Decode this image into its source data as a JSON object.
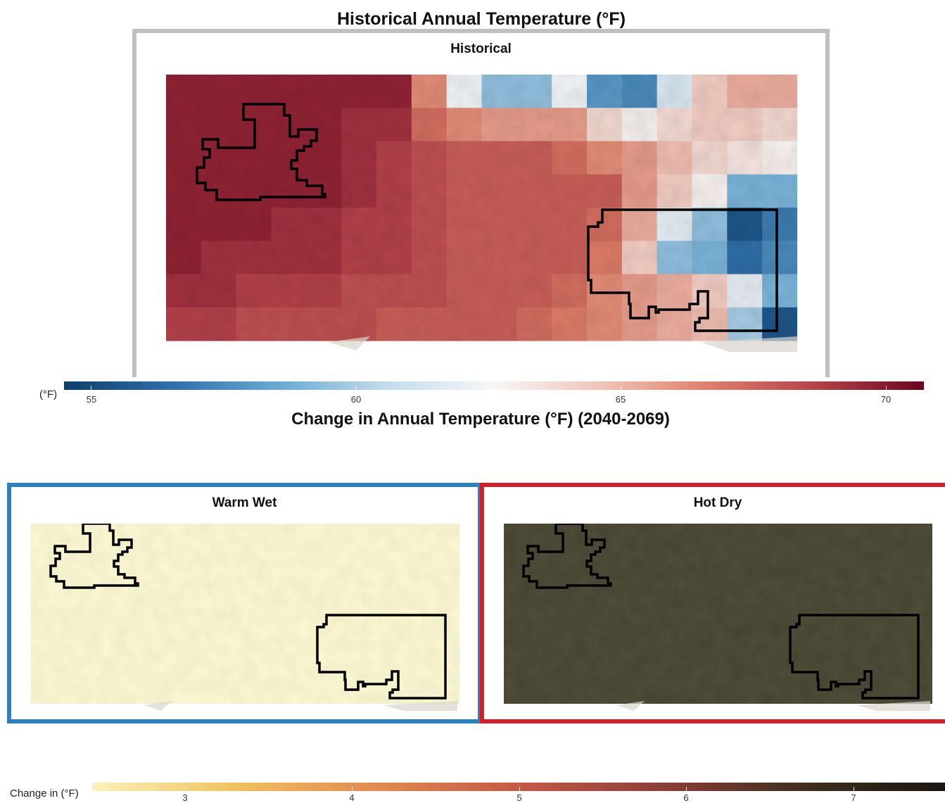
{
  "historical": {
    "title": "Historical Annual Temperature (°F)",
    "panel_title": "Historical",
    "frame_color": "#c0c0c0",
    "legend": {
      "unit_label": "(°F)",
      "ticks": [
        "55",
        "60",
        "65",
        "70"
      ],
      "colors": [
        "#0e3e6b",
        "#2f6fa8",
        "#6aaad4",
        "#c3dcec",
        "#f7f7f7",
        "#f1c4b8",
        "#de7f69",
        "#b5424a",
        "#6b0520"
      ]
    },
    "map_grid": [
      [
        70,
        70,
        70,
        70,
        70,
        70,
        70,
        66.5,
        62.5,
        59.5,
        59.5,
        62.5,
        58,
        57.5,
        61.5,
        64.5,
        65.5,
        65.5
      ],
      [
        70,
        70,
        70,
        70,
        70,
        69.5,
        69.5,
        67.5,
        66.5,
        66,
        66,
        66,
        64,
        63,
        64,
        64.5,
        64.5,
        64
      ],
      [
        70,
        70,
        70,
        70,
        70,
        69.5,
        69,
        68.5,
        68,
        68,
        68,
        67.5,
        66.5,
        66,
        65,
        64,
        63.5,
        63
      ],
      [
        70,
        70,
        70,
        70,
        70,
        69.5,
        69,
        68.5,
        68,
        68,
        68,
        68,
        68,
        66,
        64.5,
        63,
        59,
        59
      ],
      [
        70,
        70,
        70,
        69.5,
        69.5,
        69,
        69,
        68.5,
        68,
        68,
        68,
        68,
        67.5,
        65.5,
        62,
        59.5,
        55.5,
        57
      ],
      [
        70,
        69.5,
        69.5,
        69.5,
        69.5,
        69,
        69,
        68.5,
        68,
        68,
        68,
        68,
        67,
        64.5,
        59.5,
        59,
        56.5,
        57.5
      ],
      [
        69.5,
        69.5,
        69,
        69,
        69,
        68.5,
        68.5,
        68.5,
        68,
        68,
        68,
        67.5,
        66.5,
        66,
        65.5,
        64.5,
        62,
        59
      ],
      [
        69,
        69,
        68.5,
        68.5,
        68.5,
        68.5,
        68,
        68,
        68,
        68,
        67.5,
        67,
        66.5,
        66,
        65.5,
        65,
        60,
        55.5
      ]
    ]
  },
  "change": {
    "title": "Change in Annual Temperature (°F) (2040-2069)",
    "panels": [
      {
        "title": "Warm Wet",
        "frame_color": "#2f7fbf",
        "fill_color": "#fbf8d2"
      },
      {
        "title": "Hot Dry",
        "frame_color": "#d0202a",
        "fill_color": "#45422f"
      }
    ],
    "legend": {
      "unit_label": "Change in (°F)",
      "ticks": [
        "3",
        "4",
        "5",
        "6",
        "7"
      ],
      "colors": [
        "#fbf2bb",
        "#f0c25c",
        "#e3894f",
        "#c75844",
        "#8c3f3a",
        "#3f2f1f",
        "#1a1711"
      ]
    }
  }
}
